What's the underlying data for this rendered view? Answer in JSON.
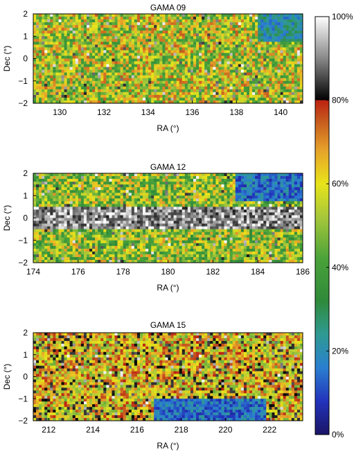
{
  "chart_data": [
    {
      "type": "heatmap",
      "title": "GAMA 09",
      "xlabel": "RA (°)",
      "ylabel": "Dec (°)",
      "xlim": [
        128.8,
        141.0
      ],
      "ylim": [
        -2,
        2
      ],
      "xticks": [
        130,
        132,
        134,
        136,
        138,
        140
      ],
      "yticks": [
        -2,
        -1,
        0,
        1,
        2
      ],
      "value_unit": "%",
      "typical_range": [
        35,
        75
      ],
      "regions": [
        {
          "ra": [
            139.0,
            141.0
          ],
          "dec": [
            0.8,
            2.0
          ],
          "value": 22
        }
      ]
    },
    {
      "type": "heatmap",
      "title": "GAMA 12",
      "xlabel": "RA (°)",
      "ylabel": "Dec (°)",
      "xlim": [
        174.0,
        186.0
      ],
      "ylim": [
        -2,
        2
      ],
      "xticks": [
        174,
        176,
        178,
        180,
        182,
        184,
        186
      ],
      "yticks": [
        -2,
        -1,
        0,
        1,
        2
      ],
      "value_unit": "%",
      "typical_range": [
        32,
        70
      ],
      "regions": [
        {
          "ra": [
            174.0,
            186.0
          ],
          "dec": [
            -0.5,
            0.5
          ],
          "value": 92
        },
        {
          "ra": [
            183.0,
            186.0
          ],
          "dec": [
            0.8,
            2.0
          ],
          "value": 15
        }
      ]
    },
    {
      "type": "heatmap",
      "title": "GAMA 15",
      "xlabel": "RA (°)",
      "ylabel": "Dec (°)",
      "xlim": [
        211.3,
        223.5
      ],
      "ylim": [
        -2,
        2
      ],
      "xticks": [
        212,
        214,
        216,
        218,
        220,
        222
      ],
      "yticks": [
        -2,
        -1,
        0,
        1,
        2
      ],
      "value_unit": "%",
      "typical_range": [
        45,
        85
      ],
      "regions": [
        {
          "ra": [
            216.8,
            221.8
          ],
          "dec": [
            -2.0,
            -1.0
          ],
          "value": 15
        }
      ]
    }
  ],
  "colorbar": {
    "min": 0,
    "max": 100,
    "ticks": [
      "100%",
      "80%",
      "60%",
      "40%",
      "20%",
      "0%"
    ],
    "stops": [
      {
        "value": 0,
        "color": "#1b1464"
      },
      {
        "value": 8,
        "color": "#2233bb"
      },
      {
        "value": 16,
        "color": "#2a7fd0"
      },
      {
        "value": 24,
        "color": "#2f9a92"
      },
      {
        "value": 32,
        "color": "#2f8a3a"
      },
      {
        "value": 42,
        "color": "#4aa23a"
      },
      {
        "value": 52,
        "color": "#a6c73a"
      },
      {
        "value": 60,
        "color": "#e8e41a"
      },
      {
        "value": 68,
        "color": "#e6a22a"
      },
      {
        "value": 75,
        "color": "#c65a1e"
      },
      {
        "value": 80,
        "color": "#bb2211"
      },
      {
        "value": 80.01,
        "color": "#000000"
      },
      {
        "value": 90,
        "color": "#888888"
      },
      {
        "value": 100,
        "color": "#ffffff"
      }
    ]
  }
}
